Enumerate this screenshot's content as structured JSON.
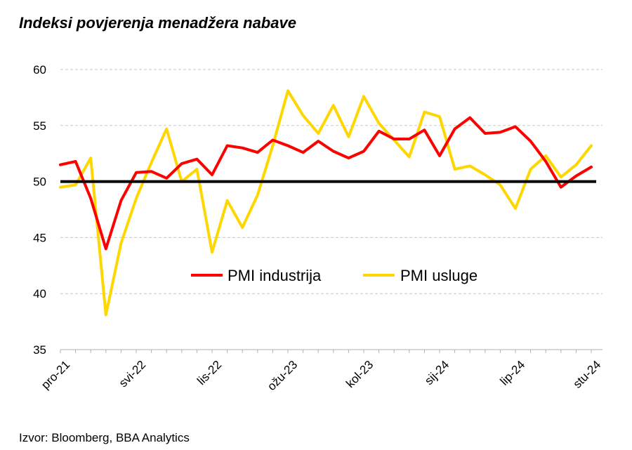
{
  "title": "Indeksi povjerenja menadžera nabave",
  "source": "Izvor: Bloomberg, BBA Analytics",
  "chart_data": {
    "type": "line",
    "ylim": [
      35,
      60
    ],
    "yticks": [
      35,
      40,
      45,
      50,
      55,
      60
    ],
    "x_tick_labels": [
      {
        "index": 0,
        "label": "pro-21"
      },
      {
        "index": 5,
        "label": "svi-22"
      },
      {
        "index": 10,
        "label": "lis-22"
      },
      {
        "index": 15,
        "label": "ožu-23"
      },
      {
        "index": 20,
        "label": "kol-23"
      },
      {
        "index": 25,
        "label": "sij-24"
      },
      {
        "index": 30,
        "label": "lip-24"
      },
      {
        "index": 35,
        "label": "stu-24"
      }
    ],
    "grid": "horizontal dashed",
    "legend_position": "center-bottom inside plot",
    "reference_line": {
      "value": 50,
      "color": "#000000"
    },
    "series": [
      {
        "name": "PMI industrija",
        "color": "#ff0000",
        "values": [
          51.5,
          51.8,
          48.5,
          44.0,
          48.3,
          50.8,
          50.9,
          50.3,
          51.6,
          52.0,
          50.6,
          53.2,
          53.0,
          52.6,
          53.7,
          53.2,
          52.6,
          53.6,
          52.7,
          52.1,
          52.7,
          54.5,
          53.8,
          53.8,
          54.6,
          52.3,
          54.7,
          55.7,
          54.3,
          54.4,
          54.9,
          53.6,
          51.8,
          49.5,
          50.5,
          51.3
        ]
      },
      {
        "name": "PMI usluge",
        "color": "#ffd700",
        "values": [
          49.5,
          49.7,
          52.1,
          38.1,
          44.5,
          48.5,
          51.7,
          54.7,
          50.0,
          51.1,
          43.7,
          48.3,
          45.9,
          48.8,
          53.2,
          58.1,
          55.9,
          54.3,
          56.8,
          54.0,
          57.6,
          55.2,
          53.7,
          52.2,
          56.2,
          55.8,
          51.1,
          51.4,
          50.6,
          49.7,
          47.6,
          51.1,
          52.3,
          50.4,
          51.5,
          53.2
        ]
      }
    ]
  }
}
